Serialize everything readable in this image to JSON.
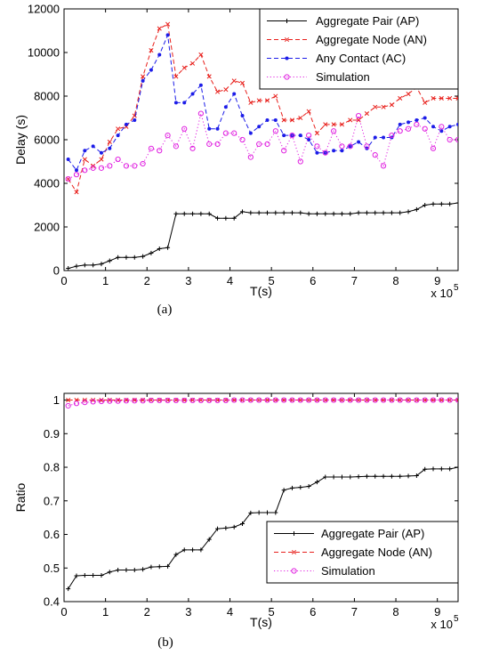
{
  "chart_data": [
    {
      "type": "line",
      "caption": "(a)",
      "xlabel": "T(s)",
      "ylabel": "Delay (s)",
      "x_multiplier_label": "x 10",
      "x_multiplier_exp": "5",
      "xlim": [
        0,
        9.5
      ],
      "ylim": [
        0,
        12000
      ],
      "xticks": [
        0,
        1,
        2,
        3,
        4,
        5,
        6,
        7,
        8,
        9
      ],
      "yticks": [
        0,
        2000,
        4000,
        6000,
        8000,
        10000,
        12000
      ],
      "legend_position": "top-right",
      "series": [
        {
          "name": "Aggregate Pair (AP)",
          "color": "#000000",
          "line": "solid",
          "marker": "plus",
          "x": [
            0.1,
            0.3,
            0.5,
            0.7,
            0.9,
            1.1,
            1.3,
            1.5,
            1.7,
            1.9,
            2.1,
            2.3,
            2.5,
            2.7,
            2.9,
            3.1,
            3.3,
            3.5,
            3.7,
            3.9,
            4.1,
            4.3,
            4.5,
            4.7,
            4.9,
            5.1,
            5.3,
            5.5,
            5.7,
            5.9,
            6.1,
            6.3,
            6.5,
            6.7,
            6.9,
            7.1,
            7.3,
            7.5,
            7.7,
            7.9,
            8.1,
            8.3,
            8.5,
            8.7,
            8.9,
            9.1,
            9.3,
            9.5
          ],
          "values": [
            100,
            200,
            250,
            250,
            300,
            450,
            600,
            600,
            600,
            650,
            800,
            1000,
            1050,
            2600,
            2600,
            2600,
            2600,
            2600,
            2400,
            2400,
            2400,
            2700,
            2650,
            2650,
            2650,
            2650,
            2650,
            2650,
            2650,
            2600,
            2600,
            2600,
            2600,
            2600,
            2600,
            2650,
            2650,
            2650,
            2650,
            2650,
            2650,
            2700,
            2800,
            3000,
            3050,
            3050,
            3050,
            3100
          ]
        },
        {
          "name": "Aggregate Node (AN)",
          "color": "#e8201c",
          "line": "dashed",
          "marker": "x",
          "x": [
            0.1,
            0.3,
            0.5,
            0.7,
            0.9,
            1.1,
            1.3,
            1.5,
            1.7,
            1.9,
            2.1,
            2.3,
            2.5,
            2.7,
            2.9,
            3.1,
            3.3,
            3.5,
            3.7,
            3.9,
            4.1,
            4.3,
            4.5,
            4.7,
            4.9,
            5.1,
            5.3,
            5.5,
            5.7,
            5.9,
            6.1,
            6.3,
            6.5,
            6.7,
            6.9,
            7.1,
            7.3,
            7.5,
            7.7,
            7.9,
            8.1,
            8.3,
            8.5,
            8.7,
            8.9,
            9.1,
            9.3,
            9.5
          ],
          "values": [
            4200,
            3600,
            5100,
            4800,
            5100,
            5900,
            6500,
            6600,
            7100,
            8900,
            10100,
            11100,
            11300,
            8900,
            9300,
            9500,
            9900,
            8900,
            8200,
            8300,
            8700,
            8600,
            7700,
            7800,
            7800,
            8000,
            6900,
            6900,
            7000,
            7300,
            6300,
            6700,
            6700,
            6700,
            6900,
            6900,
            7200,
            7500,
            7500,
            7600,
            7900,
            8100,
            8400,
            7700,
            7900,
            7900,
            7900,
            7900
          ]
        },
        {
          "name": "Any Contact (AC)",
          "color": "#1c1ce8",
          "line": "dashed",
          "marker": "dot",
          "x": [
            0.1,
            0.3,
            0.5,
            0.7,
            0.9,
            1.1,
            1.3,
            1.5,
            1.7,
            1.9,
            2.1,
            2.3,
            2.5,
            2.7,
            2.9,
            3.1,
            3.3,
            3.5,
            3.7,
            3.9,
            4.1,
            4.3,
            4.5,
            4.7,
            4.9,
            5.1,
            5.3,
            5.5,
            5.7,
            5.9,
            6.1,
            6.3,
            6.5,
            6.7,
            6.9,
            7.1,
            7.3,
            7.5,
            7.7,
            7.9,
            8.1,
            8.3,
            8.5,
            8.7,
            8.9,
            9.1,
            9.3,
            9.5
          ],
          "values": [
            5100,
            4600,
            5500,
            5700,
            5400,
            5600,
            6200,
            6700,
            6900,
            8700,
            9200,
            9900,
            10800,
            7700,
            7700,
            8100,
            8500,
            6500,
            6500,
            7500,
            8100,
            7100,
            6300,
            6600,
            6900,
            6900,
            6200,
            6200,
            6200,
            6000,
            5400,
            5400,
            5500,
            5500,
            5700,
            5900,
            5600,
            6100,
            6100,
            6100,
            6700,
            6800,
            6900,
            7000,
            6600,
            6400,
            6600,
            6700
          ]
        },
        {
          "name": "Simulation",
          "color": "#e020e0",
          "line": "dotted",
          "marker": "circle",
          "x": [
            0.1,
            0.3,
            0.5,
            0.7,
            0.9,
            1.1,
            1.3,
            1.5,
            1.7,
            1.9,
            2.1,
            2.3,
            2.5,
            2.7,
            2.9,
            3.1,
            3.3,
            3.5,
            3.7,
            3.9,
            4.1,
            4.3,
            4.5,
            4.7,
            4.9,
            5.1,
            5.3,
            5.5,
            5.7,
            5.9,
            6.1,
            6.3,
            6.5,
            6.7,
            6.9,
            7.1,
            7.3,
            7.5,
            7.7,
            7.9,
            8.1,
            8.3,
            8.5,
            8.7,
            8.9,
            9.1,
            9.3,
            9.5
          ],
          "values": [
            4200,
            4400,
            4600,
            4700,
            4700,
            4800,
            5100,
            4800,
            4800,
            4900,
            5600,
            5500,
            6200,
            5700,
            6500,
            5600,
            7200,
            5800,
            5800,
            6300,
            6300,
            6000,
            5200,
            5800,
            5800,
            6400,
            5500,
            6200,
            5000,
            6200,
            5700,
            5400,
            6400,
            5700,
            5700,
            7100,
            5700,
            5300,
            4800,
            6200,
            6400,
            6500,
            6700,
            6500,
            5600,
            6600,
            6000,
            6000
          ]
        }
      ]
    },
    {
      "type": "line",
      "caption": "(b)",
      "xlabel": "T(s)",
      "ylabel": "Ratio",
      "x_multiplier_label": "x 10",
      "x_multiplier_exp": "5",
      "xlim": [
        0,
        9.5
      ],
      "ylim": [
        0.4,
        1.02
      ],
      "xticks": [
        0,
        1,
        2,
        3,
        4,
        5,
        6,
        7,
        8,
        9
      ],
      "yticks": [
        0.4,
        0.5,
        0.6,
        0.7,
        0.8,
        0.9,
        1
      ],
      "yticklabels": [
        "0.4",
        "0.5",
        "0.6",
        "0.7",
        "0.8",
        "0.9",
        "1"
      ],
      "legend_position": "bottom-right",
      "series": [
        {
          "name": "Aggregate Pair (AP)",
          "color": "#000000",
          "line": "solid",
          "marker": "plus",
          "x": [
            0.1,
            0.3,
            0.5,
            0.7,
            0.9,
            1.1,
            1.3,
            1.5,
            1.7,
            1.9,
            2.1,
            2.3,
            2.5,
            2.7,
            2.9,
            3.1,
            3.3,
            3.5,
            3.7,
            3.9,
            4.1,
            4.3,
            4.5,
            4.7,
            4.9,
            5.1,
            5.3,
            5.5,
            5.7,
            5.9,
            6.1,
            6.3,
            6.5,
            6.7,
            6.9,
            7.1,
            7.3,
            7.5,
            7.7,
            7.9,
            8.1,
            8.3,
            8.5,
            8.7,
            8.9,
            9.1,
            9.3,
            9.5
          ],
          "values": [
            0.438,
            0.477,
            0.478,
            0.478,
            0.478,
            0.488,
            0.494,
            0.494,
            0.494,
            0.496,
            0.503,
            0.504,
            0.505,
            0.54,
            0.554,
            0.554,
            0.554,
            0.585,
            0.617,
            0.619,
            0.622,
            0.632,
            0.664,
            0.665,
            0.665,
            0.665,
            0.732,
            0.738,
            0.74,
            0.743,
            0.756,
            0.771,
            0.771,
            0.771,
            0.771,
            0.772,
            0.773,
            0.773,
            0.773,
            0.773,
            0.773,
            0.774,
            0.775,
            0.794,
            0.795,
            0.795,
            0.795,
            0.8
          ]
        },
        {
          "name": "Aggregate Node (AN)",
          "color": "#e8201c",
          "line": "dashed",
          "marker": "x",
          "x": [
            0.1,
            0.3,
            0.5,
            0.7,
            0.9,
            1.1,
            1.3,
            1.5,
            1.7,
            1.9,
            2.1,
            2.3,
            2.5,
            2.7,
            2.9,
            3.1,
            3.3,
            3.5,
            3.7,
            3.9,
            4.1,
            4.3,
            4.5,
            4.7,
            4.9,
            5.1,
            5.3,
            5.5,
            5.7,
            5.9,
            6.1,
            6.3,
            6.5,
            6.7,
            6.9,
            7.1,
            7.3,
            7.5,
            7.7,
            7.9,
            8.1,
            8.3,
            8.5,
            8.7,
            8.9,
            9.1,
            9.3,
            9.5
          ],
          "values": [
            1,
            1,
            1,
            1,
            1,
            1,
            1,
            1,
            1,
            1,
            1,
            1,
            1,
            1,
            1,
            1,
            1,
            1,
            1,
            1,
            1,
            1,
            1,
            1,
            1,
            1,
            1,
            1,
            1,
            1,
            1,
            1,
            1,
            1,
            1,
            1,
            1,
            1,
            1,
            1,
            1,
            1,
            1,
            1,
            1,
            1,
            1,
            1
          ]
        },
        {
          "name": "Simulation",
          "color": "#e020e0",
          "line": "dotted",
          "marker": "circle",
          "x": [
            0.1,
            0.3,
            0.5,
            0.7,
            0.9,
            1.1,
            1.3,
            1.5,
            1.7,
            1.9,
            2.1,
            2.3,
            2.5,
            2.7,
            2.9,
            3.1,
            3.3,
            3.5,
            3.7,
            3.9,
            4.1,
            4.3,
            4.5,
            4.7,
            4.9,
            5.1,
            5.3,
            5.5,
            5.7,
            5.9,
            6.1,
            6.3,
            6.5,
            6.7,
            6.9,
            7.1,
            7.3,
            7.5,
            7.7,
            7.9,
            8.1,
            8.3,
            8.5,
            8.7,
            8.9,
            9.1,
            9.3,
            9.5
          ],
          "values": [
            0.983,
            0.99,
            0.993,
            0.995,
            0.996,
            0.997,
            0.997,
            0.998,
            0.998,
            0.998,
            0.999,
            0.999,
            0.999,
            0.999,
            0.999,
            0.999,
            0.999,
            0.999,
            0.999,
            0.999,
            1,
            1,
            1,
            1,
            1,
            1,
            1,
            1,
            1,
            1,
            1,
            1,
            1,
            1,
            1,
            1,
            1,
            1,
            1,
            1,
            1,
            1,
            1,
            1,
            1,
            1,
            1,
            1
          ]
        }
      ]
    }
  ]
}
